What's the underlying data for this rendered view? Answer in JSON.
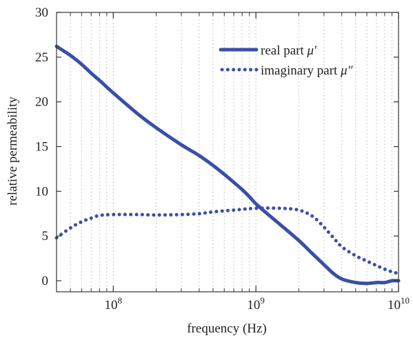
{
  "chart_data": {
    "type": "line",
    "xlabel": "frequency (Hz)",
    "ylabel": "relative permeability",
    "x_scale": "log",
    "xlim": [
      40000000,
      10000000000
    ],
    "ylim": [
      0,
      30
    ],
    "x_tick_labels": [
      {
        "value": 100000000,
        "base": "10",
        "exp": "8"
      },
      {
        "value": 1000000000,
        "base": "10",
        "exp": "9"
      },
      {
        "value": 10000000000,
        "base": "10",
        "exp": "10"
      }
    ],
    "y_ticks": [
      0,
      5,
      10,
      15,
      20,
      25,
      30
    ],
    "grid": "vertical dotted at decades and minor ticks",
    "legend": "top-right",
    "legend_entries": [
      {
        "prefix": "real part ",
        "symbol": "μ′"
      },
      {
        "prefix": "imaginary part ",
        "symbol": "μ″"
      }
    ],
    "colors": {
      "series": "#3a4fa6",
      "grid": "#c8c8c8",
      "axis": "#333333"
    },
    "series": [
      {
        "name": "real part μ′",
        "style": "solid",
        "x": [
          40000000,
          50000000,
          60000000,
          70000000,
          80000000,
          100000000,
          150000000,
          200000000,
          300000000,
          400000000,
          500000000,
          600000000,
          700000000,
          800000000,
          900000000,
          1000000000,
          1200000000,
          1500000000,
          2000000000,
          2500000000,
          3000000000,
          3500000000,
          4000000000,
          5000000000,
          6000000000,
          7000000000,
          8000000000,
          9000000000,
          10000000000
        ],
        "values": [
          26.2,
          25.2,
          24.2,
          23.2,
          22.4,
          21.0,
          18.6,
          17.1,
          15.2,
          14.0,
          12.9,
          11.9,
          11.0,
          10.2,
          9.4,
          8.6,
          7.5,
          6.2,
          4.5,
          3.0,
          1.8,
          0.8,
          0.2,
          -0.2,
          -0.3,
          -0.2,
          -0.2,
          0.0,
          0.0
        ]
      },
      {
        "name": "imaginary part μ″",
        "style": "dotted",
        "x": [
          40000000,
          50000000,
          60000000,
          70000000,
          80000000,
          100000000,
          150000000,
          200000000,
          300000000,
          400000000,
          500000000,
          700000000,
          1000000000,
          1500000000,
          2000000000,
          2500000000,
          3000000000,
          3500000000,
          4000000000,
          5000000000,
          6000000000,
          7000000000,
          8000000000,
          9000000000,
          10000000000
        ],
        "values": [
          4.8,
          5.9,
          6.6,
          7.0,
          7.3,
          7.4,
          7.4,
          7.35,
          7.4,
          7.5,
          7.7,
          7.9,
          8.1,
          8.1,
          7.9,
          7.2,
          6.0,
          4.8,
          3.8,
          2.8,
          2.2,
          1.7,
          1.3,
          1.0,
          0.8
        ]
      }
    ]
  }
}
